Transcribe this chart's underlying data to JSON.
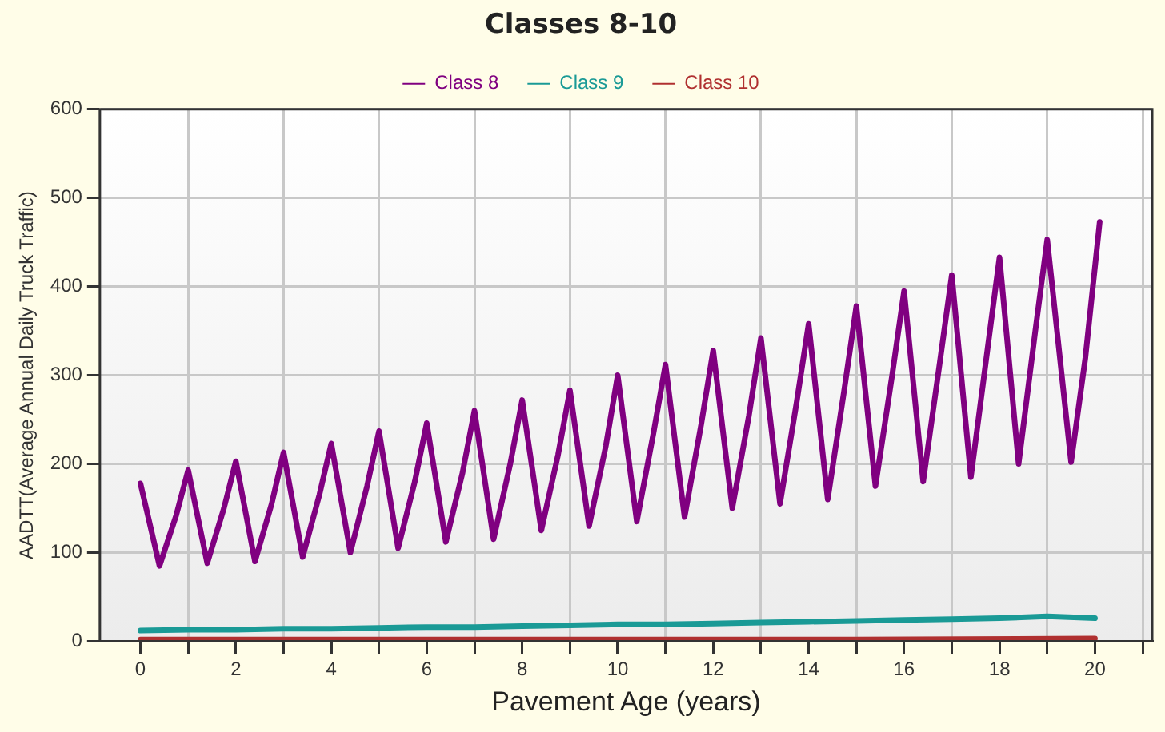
{
  "chart_data": {
    "type": "line",
    "title": "Classes 8-10",
    "xlabel": "Pavement Age (years)",
    "ylabel": "AADTT(Average Annual Daily Truck Traffic)",
    "xlim": [
      -0.85,
      21.2
    ],
    "xticks": [
      0,
      {
        "value": 1,
        "label": null
      },
      2,
      {
        "value": 3,
        "label": null
      },
      4,
      {
        "value": 5,
        "label": null
      },
      6,
      {
        "value": 7,
        "label": null
      },
      8,
      {
        "value": 9,
        "label": null
      },
      10,
      {
        "value": 11,
        "label": null
      },
      12,
      {
        "value": 13,
        "label": null
      },
      14,
      {
        "value": 15,
        "label": null
      },
      16,
      {
        "value": 17,
        "label": null
      },
      18,
      {
        "value": 19,
        "label": null
      },
      20,
      {
        "value": 21,
        "label": null
      }
    ],
    "ylim": [
      0,
      600
    ],
    "yticks": [
      0,
      100,
      200,
      300,
      400,
      500,
      600
    ],
    "grid": true,
    "legend": "top",
    "line_style": "solid",
    "series": [
      {
        "name": "Class 8",
        "color": "#800080",
        "x": [
          0,
          0.4,
          0.75,
          1,
          1.4,
          1.75,
          2,
          2.4,
          2.75,
          3,
          3.4,
          3.75,
          4,
          4.4,
          4.75,
          5,
          5.4,
          5.75,
          6,
          6.4,
          6.75,
          7,
          7.4,
          7.75,
          8,
          8.4,
          8.75,
          9,
          9.4,
          9.75,
          10,
          10.4,
          10.75,
          11,
          11.4,
          11.75,
          12,
          12.4,
          12.75,
          13,
          13.4,
          13.75,
          14,
          14.4,
          14.75,
          15,
          15.4,
          15.75,
          16,
          16.4,
          16.75,
          17,
          17.4,
          17.75,
          18,
          18.4,
          18.75,
          19,
          19.5,
          19.8,
          20.1
        ],
        "values": [
          178,
          85,
          142,
          193,
          88,
          150,
          203,
          90,
          155,
          213,
          95,
          165,
          223,
          100,
          175,
          237,
          105,
          180,
          246,
          112,
          190,
          260,
          115,
          200,
          272,
          125,
          210,
          283,
          130,
          220,
          300,
          135,
          235,
          312,
          140,
          245,
          328,
          150,
          255,
          342,
          155,
          270,
          358,
          160,
          285,
          378,
          175,
          300,
          395,
          180,
          315,
          413,
          185,
          330,
          433,
          200,
          350,
          453,
          202,
          320,
          473
        ]
      },
      {
        "name": "Class 9",
        "color": "#1a9a96",
        "x": [
          0,
          1,
          2,
          3,
          4,
          5,
          6,
          7,
          8,
          9,
          10,
          11,
          12,
          13,
          14,
          15,
          16,
          17,
          18,
          19,
          20
        ],
        "values": [
          12,
          13,
          13,
          14,
          14,
          15,
          16,
          16,
          17,
          18,
          19,
          19,
          20,
          21,
          22,
          23,
          24,
          25,
          26,
          28,
          26
        ]
      },
      {
        "name": "Class 10",
        "color": "#b03030",
        "x": [
          0,
          5,
          10,
          15,
          20
        ],
        "values": [
          2,
          2,
          2,
          2,
          3
        ]
      }
    ]
  }
}
